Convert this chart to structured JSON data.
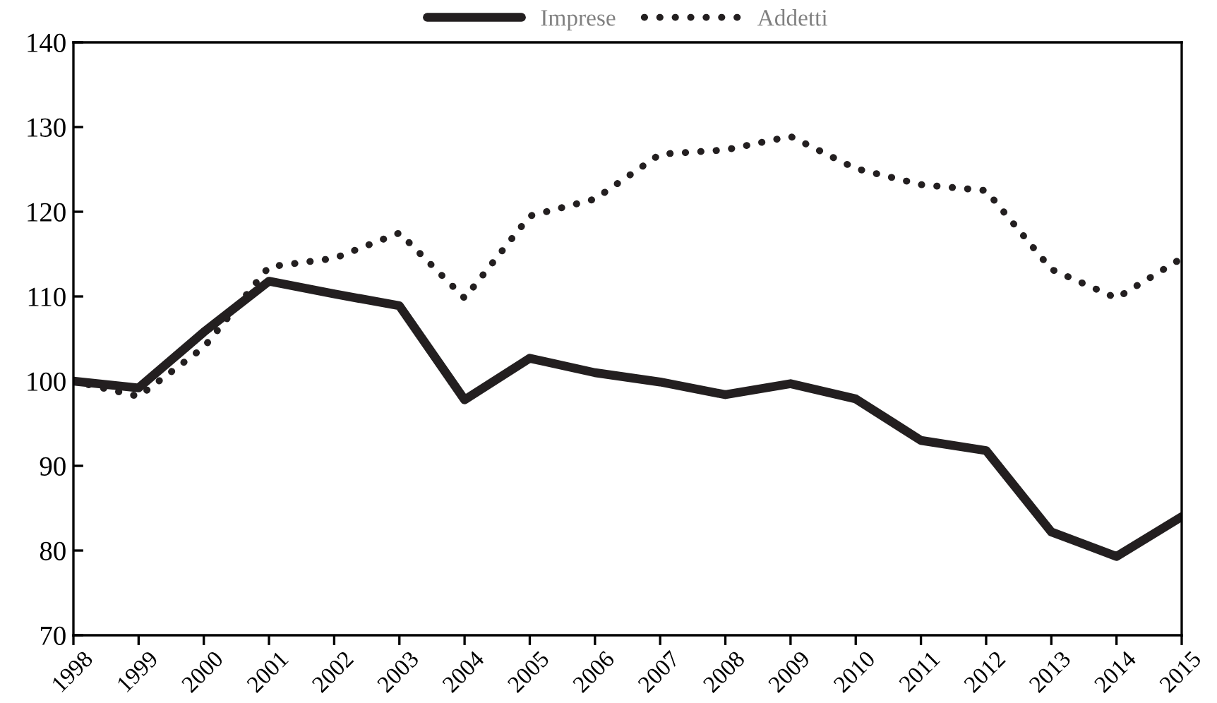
{
  "chart_data": {
    "type": "line",
    "categories": [
      "1998",
      "1999",
      "2000",
      "2001",
      "2002",
      "2003",
      "2004",
      "2005",
      "2006",
      "2007",
      "2008",
      "2009",
      "2010",
      "2011",
      "2012",
      "2013",
      "2014",
      "2015"
    ],
    "series": [
      {
        "name": "Imprese",
        "color": "#231f20",
        "line_style": "solid",
        "values": [
          100,
          99.2,
          105.8,
          111.8,
          110.3,
          108.9,
          97.8,
          102.7,
          101,
          99.9,
          98.4,
          99.7,
          97.9,
          93,
          91.8,
          82.2,
          79.3,
          84
        ]
      },
      {
        "name": "Addetti",
        "color": "#231f20",
        "line_style": "dotted",
        "values": [
          100,
          98.2,
          104,
          113.5,
          114.5,
          117.5,
          109.8,
          119.5,
          121.5,
          126.8,
          127.3,
          128.9,
          125.1,
          123.2,
          122.5,
          113.2,
          109.8,
          114.5
        ]
      }
    ],
    "ylim": [
      70,
      140
    ],
    "yticks": [
      70,
      80,
      90,
      100,
      110,
      120,
      130,
      140
    ],
    "grid": false,
    "legend": "top",
    "marker": "none"
  }
}
